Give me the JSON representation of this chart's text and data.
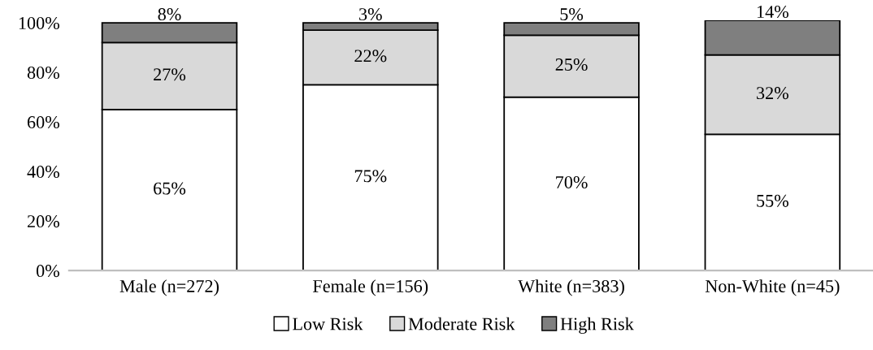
{
  "chart_data": {
    "type": "bar",
    "stacked": true,
    "categories": [
      "Male (n=272)",
      "Female (n=156)",
      "White (n=383)",
      "Non-White (n=45)"
    ],
    "series": [
      {
        "name": "Low Risk",
        "color": "#ffffff",
        "values": [
          65,
          75,
          70,
          55
        ],
        "value_labels": [
          "65%",
          "75%",
          "70%",
          "55%"
        ]
      },
      {
        "name": "Moderate Risk",
        "color": "#d9d9d9",
        "values": [
          27,
          22,
          25,
          32
        ],
        "value_labels": [
          "27%",
          "22%",
          "25%",
          "32%"
        ]
      },
      {
        "name": "High Risk",
        "color": "#7f7f7f",
        "values": [
          8,
          3,
          5,
          14
        ],
        "value_labels": [
          "8%",
          "3%",
          "5%",
          "14%"
        ]
      }
    ],
    "ylim": [
      0,
      101
    ],
    "yticks": [
      {
        "value": 0,
        "label": "0%"
      },
      {
        "value": 20,
        "label": "20%"
      },
      {
        "value": 40,
        "label": "40%"
      },
      {
        "value": 60,
        "label": "60%"
      },
      {
        "value": 80,
        "label": "80%"
      },
      {
        "value": 100,
        "label": "100%"
      }
    ],
    "grid": false,
    "legend": "bottom"
  }
}
